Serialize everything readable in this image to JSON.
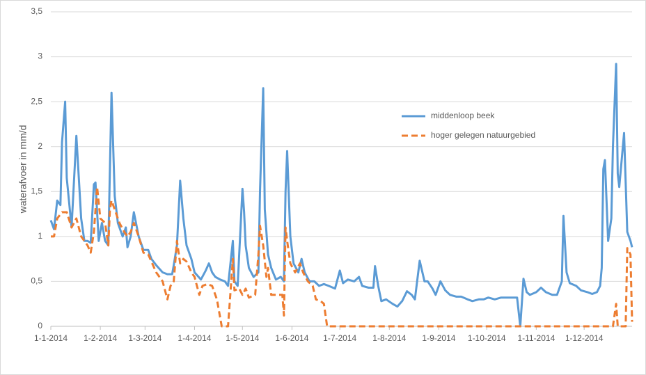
{
  "chart_data": {
    "type": "line",
    "y_label": "waterafvoer in mm/d",
    "ylim": [
      0,
      3.5
    ],
    "yticks": [
      0,
      {
        "value": 0.5,
        "label": "0,5"
      },
      1,
      {
        "value": 1.5,
        "label": "1,5"
      },
      2,
      {
        "value": 2.5,
        "label": "2,5"
      },
      3,
      {
        "value": 3.5,
        "label": "3,5"
      }
    ],
    "xlim": [
      "1-1-2014",
      "31-12-2014"
    ],
    "xticks": [
      "1-1-2014",
      "1-2-2014",
      "1-3-2014",
      "1-4-2014",
      "1-5-2014",
      "1-6-2014",
      "1-7-2014",
      "1-8-2014",
      "1-9-2014",
      "1-10-2014",
      "1-11-2014",
      "1-12-2014"
    ],
    "grid": true,
    "legend_position": "right",
    "series": [
      {
        "name": "middenloop beek",
        "color": "#5b9bd5",
        "dash": "solid",
        "x": [
          "1-1-2014",
          "3-1-2014",
          "5-1-2014",
          "7-1-2014",
          "8-1-2014",
          "10-1-2014",
          "11-1-2014",
          "14-1-2014",
          "17-1-2014",
          "20-1-2014",
          "22-1-2014",
          "24-1-2014",
          "26-1-2014",
          "28-1-2014",
          "29-1-2014",
          "31-1-2014",
          "2-2-2014",
          "4-2-2014",
          "6-2-2014",
          "8-2-2014",
          "10-2-2014",
          "12-2-2014",
          "15-2-2014",
          "17-2-2014",
          "18-2-2014",
          "20-2-2014",
          "22-2-2014",
          "25-2-2014",
          "28-2-2014",
          "3-3-2014",
          "5-3-2014",
          "8-3-2014",
          "12-3-2014",
          "15-3-2014",
          "18-3-2014",
          "19-3-2014",
          "21-3-2014",
          "23-3-2014",
          "25-3-2014",
          "27-3-2014",
          "30-3-2014",
          "1-4-2014",
          "5-4-2014",
          "8-4-2014",
          "10-4-2014",
          "12-4-2014",
          "14-4-2014",
          "17-4-2014",
          "20-4-2014",
          "22-4-2014",
          "25-4-2014",
          "26-4-2014",
          "28-4-2014",
          "1-5-2014",
          "2-5-2014",
          "3-5-2014",
          "5-5-2014",
          "8-5-2014",
          "11-5-2014",
          "12-5-2014",
          "14-5-2014",
          "15-5-2014",
          "17-5-2014",
          "19-5-2014",
          "22-5-2014",
          "25-5-2014",
          "27-5-2014",
          "28-5-2014",
          "29-5-2014",
          "31-5-2014",
          "2-6-2014",
          "5-6-2014",
          "7-6-2014",
          "9-6-2014",
          "12-6-2014",
          "15-6-2014",
          "18-6-2014",
          "21-6-2014",
          "24-6-2014",
          "28-6-2014",
          "1-7-2014",
          "3-7-2014",
          "6-7-2014",
          "10-7-2014",
          "13-7-2014",
          "15-7-2014",
          "19-7-2014",
          "22-7-2014",
          "23-7-2014",
          "25-7-2014",
          "27-7-2014",
          "30-7-2014",
          "3-8-2014",
          "6-8-2014",
          "9-8-2014",
          "12-8-2014",
          "15-8-2014",
          "17-8-2014",
          "20-8-2014",
          "23-8-2014",
          "25-8-2014",
          "28-8-2014",
          "30-8-2014",
          "2-9-2014",
          "5-9-2014",
          "8-9-2014",
          "12-9-2014",
          "15-9-2014",
          "19-9-2014",
          "22-9-2014",
          "26-9-2014",
          "29-9-2014",
          "2-10-2014",
          "6-10-2014",
          "10-10-2014",
          "14-10-2014",
          "18-10-2014",
          "20-10-2014",
          "22-10-2014",
          "24-10-2014",
          "26-10-2014",
          "28-10-2014",
          "1-11-2014",
          "4-11-2014",
          "7-11-2014",
          "11-11-2014",
          "14-11-2014",
          "17-11-2014",
          "18-11-2014",
          "20-11-2014",
          "22-11-2014",
          "26-11-2014",
          "29-11-2014",
          "3-12-2014",
          "6-12-2014",
          "9-12-2014",
          "11-12-2014",
          "12-12-2014",
          "13-12-2014",
          "14-12-2014",
          "16-12-2014",
          "18-12-2014",
          "19-12-2014",
          "21-12-2014",
          "22-12-2014",
          "23-12-2014",
          "26-12-2014",
          "28-12-2014",
          "30-12-2014",
          "31-12-2014"
        ],
        "values": [
          1.18,
          1.08,
          1.4,
          1.35,
          2.05,
          2.5,
          1.65,
          1.1,
          2.12,
          1.2,
          0.95,
          0.95,
          0.93,
          1.58,
          1.6,
          0.95,
          1.15,
          0.95,
          0.9,
          2.6,
          1.45,
          1.15,
          1.0,
          1.1,
          0.88,
          1.0,
          1.27,
          1.0,
          0.85,
          0.85,
          0.75,
          0.68,
          0.6,
          0.58,
          0.58,
          0.68,
          0.9,
          1.62,
          1.2,
          0.9,
          0.75,
          0.6,
          0.52,
          0.62,
          0.7,
          0.6,
          0.55,
          0.52,
          0.5,
          0.45,
          0.95,
          0.5,
          0.45,
          1.53,
          1.28,
          0.9,
          0.65,
          0.55,
          0.6,
          1.5,
          2.65,
          1.3,
          0.8,
          0.65,
          0.52,
          0.55,
          0.5,
          1.5,
          1.95,
          1.0,
          0.7,
          0.6,
          0.75,
          0.6,
          0.5,
          0.5,
          0.45,
          0.47,
          0.45,
          0.42,
          0.62,
          0.48,
          0.52,
          0.5,
          0.55,
          0.45,
          0.43,
          0.43,
          0.67,
          0.45,
          0.28,
          0.3,
          0.25,
          0.22,
          0.28,
          0.39,
          0.35,
          0.3,
          0.73,
          0.5,
          0.5,
          0.42,
          0.35,
          0.5,
          0.4,
          0.35,
          0.33,
          0.33,
          0.3,
          0.28,
          0.3,
          0.3,
          0.32,
          0.3,
          0.32,
          0.32,
          0.32,
          0.32,
          0.0,
          0.53,
          0.38,
          0.35,
          0.38,
          0.43,
          0.38,
          0.35,
          0.35,
          0.5,
          1.23,
          0.6,
          0.48,
          0.45,
          0.4,
          0.38,
          0.36,
          0.38,
          0.45,
          0.65,
          1.75,
          1.85,
          0.95,
          1.2,
          2.0,
          2.92,
          1.7,
          1.55,
          2.15,
          1.05,
          0.95,
          0.88
        ]
      },
      {
        "name": "hoger gelegen natuurgebied",
        "color": "#ed7d31",
        "dash": "dashed",
        "x": [
          "1-1-2014",
          "3-1-2014",
          "5-1-2014",
          "8-1-2014",
          "11-1-2014",
          "14-1-2014",
          "17-1-2014",
          "20-1-2014",
          "24-1-2014",
          "26-1-2014",
          "28-1-2014",
          "30-1-2014",
          "1-2-2014",
          "4-2-2014",
          "6-2-2014",
          "7-2-2014",
          "8-2-2014",
          "10-2-2014",
          "13-2-2014",
          "16-2-2014",
          "18-2-2014",
          "20-2-2014",
          "22-2-2014",
          "25-2-2014",
          "28-2-2014",
          "3-3-2014",
          "5-3-2014",
          "8-3-2014",
          "12-3-2014",
          "15-3-2014",
          "17-3-2014",
          "19-3-2014",
          "21-3-2014",
          "23-3-2014",
          "25-3-2014",
          "27-3-2014",
          "30-3-2014",
          "1-4-2014",
          "4-4-2014",
          "6-4-2014",
          "9-4-2014",
          "12-4-2014",
          "15-4-2014",
          "18-4-2014",
          "22-4-2014",
          "25-4-2014",
          "26-4-2014",
          "29-4-2014",
          "1-5-2014",
          "3-5-2014",
          "5-5-2014",
          "9-5-2014",
          "11-5-2014",
          "12-5-2014",
          "14-5-2014",
          "16-5-2014",
          "17-5-2014",
          "19-5-2014",
          "22-5-2014",
          "24-5-2014",
          "26-5-2014",
          "27-5-2014",
          "28-5-2014",
          "29-5-2014",
          "31-5-2014",
          "3-6-2014",
          "6-6-2014",
          "8-6-2014",
          "11-6-2014",
          "14-6-2014",
          "16-6-2014",
          "19-6-2014",
          "21-6-2014",
          "23-6-2014",
          "19-12-2014",
          "21-12-2014",
          "22-12-2014",
          "27-12-2014",
          "28-12-2014",
          "30-12-2014",
          "31-12-2014"
        ],
        "values": [
          1.0,
          1.0,
          1.2,
          1.27,
          1.27,
          1.1,
          1.2,
          1.0,
          0.9,
          0.82,
          1.05,
          1.55,
          1.2,
          1.15,
          0.9,
          1.3,
          1.4,
          1.3,
          1.15,
          1.05,
          1.0,
          1.05,
          1.15,
          1.0,
          0.82,
          0.8,
          0.72,
          0.6,
          0.5,
          0.3,
          0.45,
          0.5,
          0.95,
          0.7,
          0.75,
          0.72,
          0.6,
          0.55,
          0.35,
          0.45,
          0.47,
          0.45,
          0.3,
          0.0,
          0.0,
          0.75,
          0.4,
          0.42,
          0.35,
          0.42,
          0.32,
          0.35,
          0.8,
          1.12,
          0.9,
          0.55,
          0.65,
          0.35,
          0.35,
          0.35,
          0.35,
          0.12,
          1.1,
          0.95,
          0.7,
          0.6,
          0.7,
          0.6,
          0.5,
          0.45,
          0.3,
          0.28,
          0.25,
          0.0,
          0.0,
          0.25,
          0.0,
          0.0,
          0.87,
          0.8,
          0.05
        ]
      }
    ]
  }
}
